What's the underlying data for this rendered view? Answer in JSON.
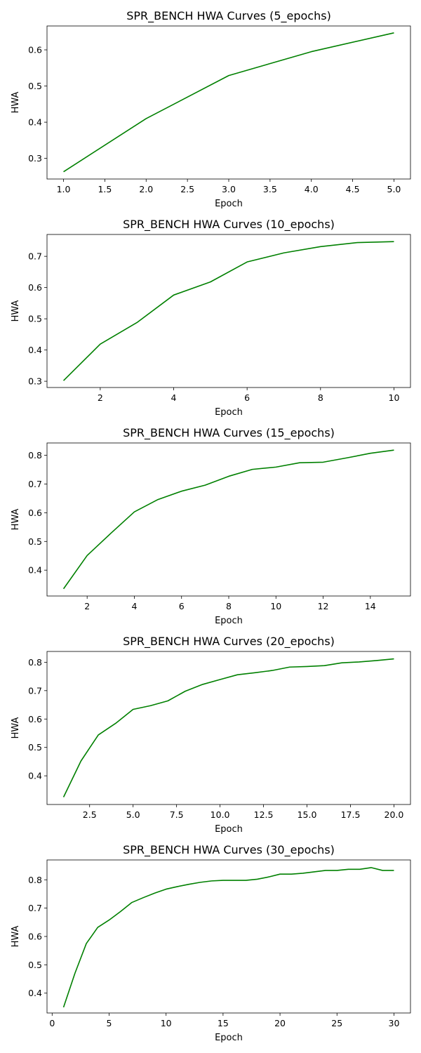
{
  "chart_data": [
    {
      "type": "line",
      "title": "SPR_BENCH HWA Curves (5_epochs)",
      "xlabel": "Epoch",
      "ylabel": "HWA",
      "xlim": [
        0.8,
        5.2
      ],
      "ylim": [
        0.243,
        0.666
      ],
      "xticks": [
        1.0,
        1.5,
        2.0,
        2.5,
        3.0,
        3.5,
        4.0,
        4.5,
        5.0
      ],
      "xtick_labels": [
        "1.0",
        "1.5",
        "2.0",
        "2.5",
        "3.0",
        "3.5",
        "4.0",
        "4.5",
        "5.0"
      ],
      "yticks": [
        0.3,
        0.4,
        0.5,
        0.6
      ],
      "ytick_labels": [
        "0.3",
        "0.4",
        "0.5",
        "0.6"
      ],
      "grid": false,
      "series": [
        {
          "color": "#008000",
          "x": [
            1,
            2,
            3,
            4,
            5
          ],
          "y": [
            0.263,
            0.41,
            0.529,
            0.595,
            0.647
          ]
        }
      ]
    },
    {
      "type": "line",
      "title": "SPR_BENCH HWA Curves (10_epochs)",
      "xlabel": "Epoch",
      "ylabel": "HWA",
      "xlim": [
        0.55,
        10.45
      ],
      "ylim": [
        0.28,
        0.77
      ],
      "xticks": [
        2,
        4,
        6,
        8,
        10
      ],
      "xtick_labels": [
        "2",
        "4",
        "6",
        "8",
        "10"
      ],
      "yticks": [
        0.3,
        0.4,
        0.5,
        0.6,
        0.7
      ],
      "ytick_labels": [
        "0.3",
        "0.4",
        "0.5",
        "0.6",
        "0.7"
      ],
      "grid": false,
      "series": [
        {
          "color": "#008000",
          "x": [
            1,
            2,
            3,
            4,
            5,
            6,
            7,
            8,
            9,
            10
          ],
          "y": [
            0.302,
            0.419,
            0.488,
            0.576,
            0.618,
            0.682,
            0.711,
            0.731,
            0.744,
            0.747
          ]
        }
      ]
    },
    {
      "type": "line",
      "title": "SPR_BENCH HWA Curves (15_epochs)",
      "xlabel": "Epoch",
      "ylabel": "HWA",
      "xlim": [
        0.3,
        15.7
      ],
      "ylim": [
        0.31,
        0.843
      ],
      "xticks": [
        2,
        4,
        6,
        8,
        10,
        12,
        14
      ],
      "xtick_labels": [
        "2",
        "4",
        "6",
        "8",
        "10",
        "12",
        "14"
      ],
      "yticks": [
        0.4,
        0.5,
        0.6,
        0.7,
        0.8
      ],
      "ytick_labels": [
        "0.4",
        "0.5",
        "0.6",
        "0.7",
        "0.8"
      ],
      "grid": false,
      "series": [
        {
          "color": "#008000",
          "x": [
            1,
            2,
            3,
            4,
            5,
            6,
            7,
            8,
            9,
            10,
            11,
            12,
            13,
            14,
            15
          ],
          "y": [
            0.335,
            0.451,
            0.528,
            0.603,
            0.646,
            0.675,
            0.696,
            0.727,
            0.751,
            0.759,
            0.774,
            0.776,
            0.791,
            0.807,
            0.818
          ]
        }
      ]
    },
    {
      "type": "line",
      "title": "SPR_BENCH HWA Curves (20_epochs)",
      "xlabel": "Epoch",
      "ylabel": "HWA",
      "xlim": [
        0.05,
        20.95
      ],
      "ylim": [
        0.299,
        0.838
      ],
      "xticks": [
        2.5,
        5.0,
        7.5,
        10.0,
        12.5,
        15.0,
        17.5,
        20.0
      ],
      "xtick_labels": [
        "2.5",
        "5.0",
        "7.5",
        "10.0",
        "12.5",
        "15.0",
        "17.5",
        "20.0"
      ],
      "yticks": [
        0.4,
        0.5,
        0.6,
        0.7,
        0.8
      ],
      "ytick_labels": [
        "0.4",
        "0.5",
        "0.6",
        "0.7",
        "0.8"
      ],
      "grid": false,
      "series": [
        {
          "color": "#008000",
          "x": [
            1,
            2,
            3,
            4,
            5,
            6,
            7,
            8,
            9,
            10,
            11,
            12,
            13,
            14,
            15,
            16,
            17,
            18,
            19,
            20
          ],
          "y": [
            0.325,
            0.452,
            0.544,
            0.585,
            0.634,
            0.647,
            0.664,
            0.698,
            0.722,
            0.739,
            0.756,
            0.763,
            0.771,
            0.783,
            0.785,
            0.788,
            0.798,
            0.801,
            0.806,
            0.812
          ]
        }
      ]
    },
    {
      "type": "line",
      "title": "SPR_BENCH HWA Curves (30_epochs)",
      "xlabel": "Epoch",
      "ylabel": "HWA",
      "xlim": [
        -0.45,
        31.45
      ],
      "ylim": [
        0.33,
        0.87
      ],
      "xticks": [
        0,
        5,
        10,
        15,
        20,
        25,
        30
      ],
      "xtick_labels": [
        "0",
        "5",
        "10",
        "15",
        "20",
        "25",
        "30"
      ],
      "yticks": [
        0.4,
        0.5,
        0.6,
        0.7,
        0.8
      ],
      "ytick_labels": [
        "0.4",
        "0.5",
        "0.6",
        "0.7",
        "0.8"
      ],
      "grid": false,
      "series": [
        {
          "color": "#008000",
          "x": [
            1,
            2,
            3,
            4,
            5,
            6,
            7,
            8,
            9,
            10,
            11,
            12,
            13,
            14,
            15,
            16,
            17,
            18,
            19,
            20,
            21,
            22,
            23,
            24,
            25,
            26,
            27,
            28,
            29,
            30
          ],
          "y": [
            0.35,
            0.47,
            0.575,
            0.632,
            0.658,
            0.688,
            0.72,
            0.737,
            0.753,
            0.767,
            0.776,
            0.784,
            0.791,
            0.796,
            0.798,
            0.798,
            0.798,
            0.802,
            0.81,
            0.82,
            0.82,
            0.823,
            0.828,
            0.833,
            0.833,
            0.837,
            0.837,
            0.843,
            0.833,
            0.833
          ]
        }
      ]
    }
  ]
}
